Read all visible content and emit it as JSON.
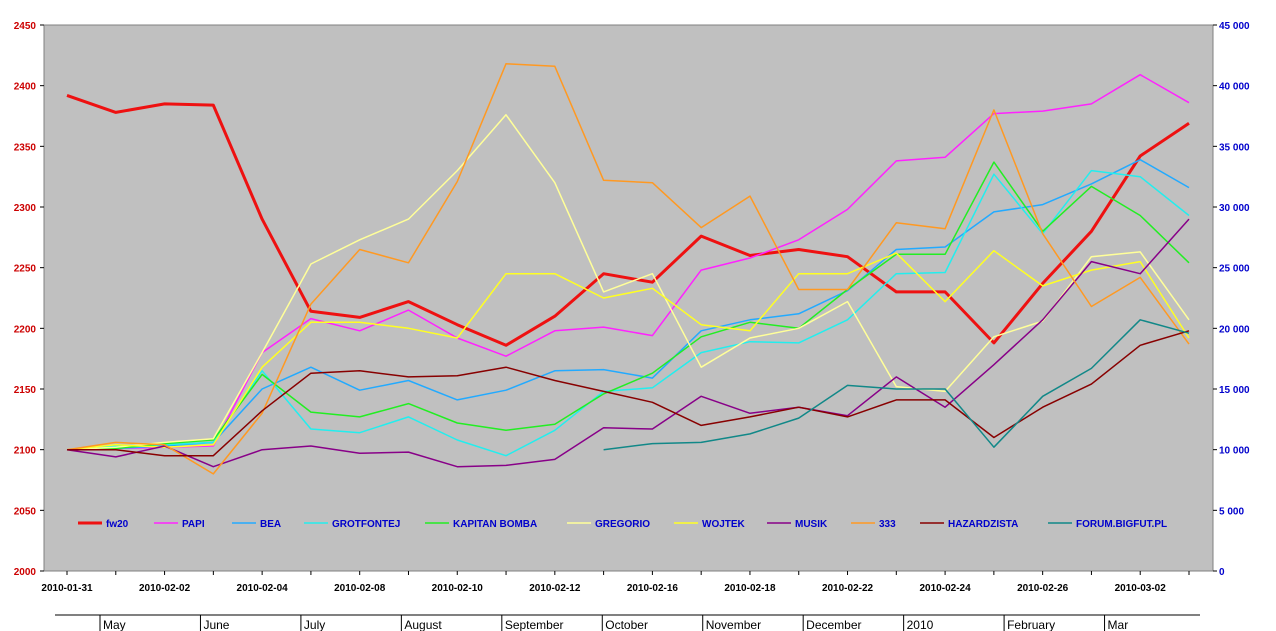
{
  "chart_data": {
    "type": "line",
    "x_dates": [
      "2010-01-31",
      "2010-02-01",
      "2010-02-02",
      "2010-02-03",
      "2010-02-04",
      "2010-02-05",
      "2010-02-08",
      "2010-02-09",
      "2010-02-10",
      "2010-02-11",
      "2010-02-12",
      "2010-02-13",
      "2010-02-16",
      "2010-02-17",
      "2010-02-18",
      "2010-02-19",
      "2010-02-22",
      "2010-02-23",
      "2010-02-24",
      "2010-02-25",
      "2010-02-26",
      "2010-02-27",
      "2010-03-02",
      "2010-03-03"
    ],
    "x_tick_labels": [
      "2010-01-31",
      "2010-02-02",
      "2010-02-04",
      "2010-02-08",
      "2010-02-10",
      "2010-02-12",
      "2010-02-16",
      "2010-02-18",
      "2010-02-22",
      "2010-02-24",
      "2010-02-26",
      "2010-03-02"
    ],
    "x_tick_indices": [
      0,
      2,
      4,
      6,
      8,
      10,
      12,
      14,
      16,
      18,
      20,
      22
    ],
    "month_labels": [
      "May",
      "June",
      "July",
      "August",
      "September",
      "October",
      "November",
      "December",
      "2010",
      "February",
      "Mar"
    ],
    "y_left": {
      "ticks": [
        "2000",
        "2050",
        "2100",
        "2150",
        "2200",
        "2250",
        "2300",
        "2350",
        "2400",
        "2450"
      ],
      "range": [
        2000,
        2450
      ],
      "color": "#cc0000"
    },
    "y_right": {
      "ticks": [
        "0",
        "5 000",
        "10 000",
        "15 000",
        "20 000",
        "25 000",
        "30 000",
        "35 000",
        "40 000",
        "45 000"
      ],
      "range": [
        0,
        45000
      ],
      "color": "#0000cc"
    },
    "grid": false,
    "plot_background": "#c0c0c0",
    "legend_position": "bottom-inside",
    "series": [
      {
        "name": "fw20",
        "color": "#ee1111",
        "width": 3,
        "axis": "left",
        "start": 0,
        "values": [
          2392,
          2378,
          2385,
          2384,
          2290,
          2214,
          2209,
          2222,
          2203,
          2186,
          2210,
          2245,
          2238,
          2276,
          2260,
          2265,
          2259,
          2230,
          2230,
          2188,
          2237,
          2280,
          2342,
          2369
        ]
      },
      {
        "name": "PAPI",
        "color": "#ff22ff",
        "width": 1.5,
        "axis": "left",
        "start": 0,
        "values": [
          2100,
          2101,
          2102,
          2103,
          2180,
          2208,
          2198,
          2215,
          2192,
          2177,
          2198,
          2201,
          2194,
          2248,
          2258,
          2273,
          2298,
          2338,
          2341,
          2377,
          2379,
          2385,
          2409,
          2386
        ]
      },
      {
        "name": "BEA",
        "color": "#22aaff",
        "width": 1.5,
        "axis": "left",
        "start": 0,
        "values": [
          2100,
          2101,
          2103,
          2106,
          2150,
          2168,
          2149,
          2157,
          2141,
          2149,
          2165,
          2166,
          2159,
          2198,
          2207,
          2212,
          2231,
          2265,
          2267,
          2296,
          2302,
          2319,
          2339,
          2316
        ]
      },
      {
        "name": "GROTFONTEJ",
        "color": "#22eeee",
        "width": 1.5,
        "axis": "left",
        "start": 0,
        "values": [
          2100,
          2103,
          2104,
          2106,
          2165,
          2117,
          2114,
          2127,
          2108,
          2095,
          2116,
          2148,
          2151,
          2180,
          2189,
          2188,
          2207,
          2245,
          2246,
          2327,
          2278,
          2330,
          2325,
          2293
        ]
      },
      {
        "name": "KAPITAN BOMBA",
        "color": "#22ee22",
        "width": 1.5,
        "axis": "left",
        "start": 0,
        "values": [
          2100,
          2101,
          2105,
          2108,
          2162,
          2131,
          2127,
          2138,
          2122,
          2116,
          2121,
          2146,
          2163,
          2193,
          2205,
          2200,
          2232,
          2261,
          2261,
          2337,
          2280,
          2317,
          2293,
          2254
        ]
      },
      {
        "name": "GREGORIO",
        "color": "#ffff99",
        "width": 1.5,
        "axis": "left",
        "start": 0,
        "values": [
          2100,
          2102,
          2106,
          2109,
          2180,
          2253,
          2273,
          2290,
          2330,
          2376,
          2320,
          2230,
          2245,
          2168,
          2192,
          2200,
          2222,
          2152,
          2148,
          2193,
          2206,
          2259,
          2263,
          2207
        ]
      },
      {
        "name": "WOJTEK",
        "color": "#ffff22",
        "width": 1.5,
        "axis": "left",
        "start": 0,
        "values": [
          2100,
          2104,
          2102,
          2104,
          2168,
          2205,
          2205,
          2200,
          2192,
          2245,
          2245,
          2225,
          2233,
          2203,
          2198,
          2245,
          2245,
          2262,
          2222,
          2264,
          2235,
          2248,
          2255,
          2192
        ]
      },
      {
        "name": "MUSIK",
        "color": "#880088",
        "width": 1.5,
        "axis": "left",
        "start": 0,
        "values": [
          2100,
          2094,
          2103,
          2086,
          2100,
          2103,
          2097,
          2098,
          2086,
          2087,
          2092,
          2118,
          2117,
          2144,
          2130,
          2135,
          2128,
          2160,
          2135,
          2170,
          2207,
          2255,
          2245,
          2290
        ]
      },
      {
        "name": "333",
        "color": "#ff9922",
        "width": 1.5,
        "axis": "left",
        "start": 0,
        "values": [
          2100,
          2106,
          2104,
          2080,
          2130,
          2220,
          2265,
          2254,
          2321,
          2418,
          2416,
          2322,
          2320,
          2283,
          2309,
          2232,
          2232,
          2287,
          2282,
          2380,
          2278,
          2218,
          2242,
          2187
        ]
      },
      {
        "name": "HAZARDZISTA",
        "color": "#880000",
        "width": 1.5,
        "axis": "left",
        "start": 0,
        "values": [
          2100,
          2100,
          2095,
          2095,
          2132,
          2163,
          2165,
          2160,
          2161,
          2168,
          2157,
          2148,
          2139,
          2120,
          2127,
          2135,
          2127,
          2141,
          2141,
          2110,
          2135,
          2154,
          2186,
          2198
        ]
      },
      {
        "name": "FORUM.BIGFUT.PL",
        "color": "#118888",
        "width": 1.5,
        "axis": "left",
        "start": 11,
        "values": [
          2100,
          2105,
          2106,
          2113,
          2126,
          2153,
          2150,
          2150,
          2102,
          2144,
          2167,
          2207,
          2196
        ]
      }
    ]
  }
}
